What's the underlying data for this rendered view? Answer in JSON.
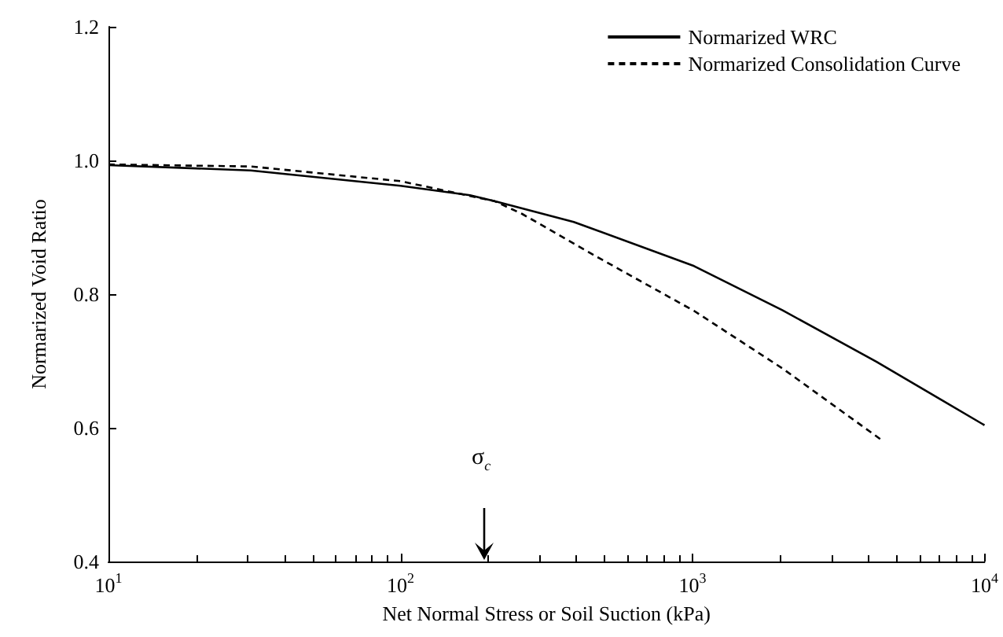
{
  "chart_data": {
    "type": "line",
    "xlabel": "Net Normal Stress or Soil Suction (kPa)",
    "ylabel": "Normarized Void Ratio",
    "log": "x",
    "xlim": [
      10,
      10000
    ],
    "ylim": [
      0.4,
      1.2
    ],
    "xticks": [
      {
        "value": 10,
        "label": "10$^{1}$"
      },
      {
        "value": 100,
        "label": "10$^{2}$"
      },
      {
        "value": 1000,
        "label": "10$^{3}$"
      },
      {
        "value": 10000,
        "label": "10$^{4}$"
      }
    ],
    "yticks": [
      0.4,
      0.6,
      0.8,
      {
        "value": 1,
        "label": "1.0"
      },
      1.2
    ],
    "grid": false,
    "legend": "top right",
    "marker": "none",
    "annotations": [
      "σ$_{c}$"
    ],
    "series": [
      {
        "name": "Normarized WRC",
        "color": "#000000",
        "line_style": "solid",
        "x": [
          10,
          30.7,
          100,
          173,
          210,
          392,
          1012,
          2030,
          4260,
          9900,
          10000
        ],
        "values": [
          0.993,
          0.985,
          0.962,
          0.948,
          0.939,
          0.908,
          0.842,
          0.776,
          0.699,
          0.605,
          0.604
        ]
      },
      {
        "name": "Normarized Consolidation Curve",
        "color": "#000000",
        "line_style": "dashed",
        "x": [
          10,
          30.7,
          100,
          210,
          261,
          483,
          1012,
          2030,
          4400
        ],
        "values": [
          0.994,
          0.991,
          0.969,
          0.939,
          0.92,
          0.853,
          0.775,
          0.689,
          0.583
        ]
      }
    ]
  }
}
